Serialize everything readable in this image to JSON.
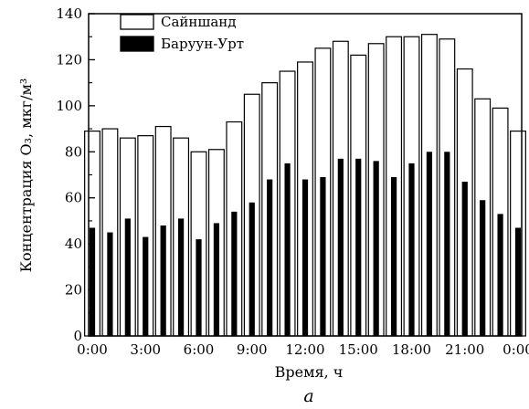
{
  "chart_data": {
    "type": "bar",
    "xlabel": "Время, ч",
    "ylabel": "Концентрация O₃, мкг/м³",
    "caption": "а",
    "ylim": [
      0,
      140
    ],
    "yticks": [
      0,
      20,
      40,
      60,
      80,
      100,
      120,
      140
    ],
    "xtick_labels": [
      "0:00",
      "3:00",
      "6:00",
      "9:00",
      "12:00",
      "15:00",
      "18:00",
      "21:00",
      "0:00"
    ],
    "hours": [
      0,
      1,
      2,
      3,
      4,
      5,
      6,
      7,
      8,
      9,
      10,
      11,
      12,
      13,
      14,
      15,
      16,
      17,
      18,
      19,
      20,
      21,
      22,
      23,
      24
    ],
    "legend_position": "top-left",
    "grid": false,
    "series": [
      {
        "name": "Сайншанд",
        "color": "#ffffff",
        "values": [
          89,
          90,
          86,
          87,
          91,
          86,
          80,
          81,
          93,
          105,
          110,
          115,
          119,
          125,
          128,
          122,
          127,
          130,
          130,
          131,
          129,
          116,
          103,
          99,
          89
        ]
      },
      {
        "name": "Баруун-Урт",
        "color": "#000000",
        "values": [
          47,
          45,
          51,
          43,
          48,
          51,
          42,
          49,
          54,
          58,
          68,
          75,
          68,
          69,
          77,
          77,
          76,
          69,
          75,
          80,
          80,
          67,
          59,
          53,
          47
        ]
      }
    ]
  }
}
